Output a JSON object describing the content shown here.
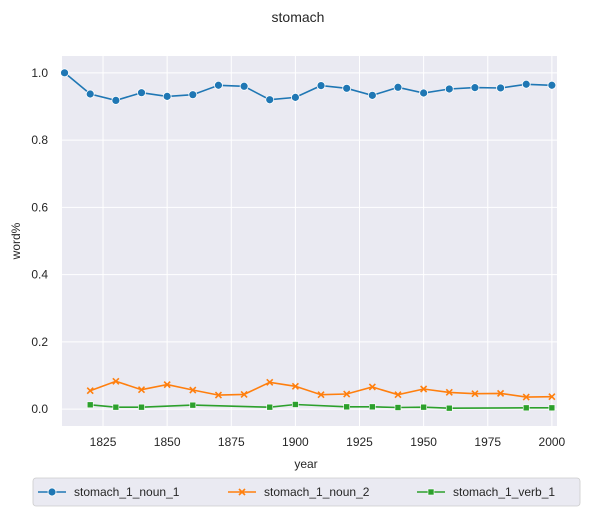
{
  "chart_data": {
    "type": "line",
    "title": "stomach",
    "xlabel": "year",
    "ylabel": "word%",
    "xlim": [
      1809,
      2002
    ],
    "ylim": [
      -0.05,
      1.05
    ],
    "x_ticks": [
      1825,
      1850,
      1875,
      1900,
      1925,
      1950,
      1975,
      2000
    ],
    "y_ticks": [
      0.0,
      0.2,
      0.4,
      0.6,
      0.8,
      1.0
    ],
    "grid": true,
    "legend_position": "bottom",
    "series": [
      {
        "name": "stomach_1_noun_1",
        "color": "#1f77b4",
        "marker": "circle",
        "x": [
          1810,
          1820,
          1830,
          1840,
          1850,
          1860,
          1870,
          1880,
          1890,
          1900,
          1910,
          1920,
          1930,
          1940,
          1950,
          1960,
          1970,
          1980,
          1990,
          2000
        ],
        "y": [
          1.0,
          0.937,
          0.918,
          0.941,
          0.93,
          0.935,
          0.963,
          0.96,
          0.92,
          0.927,
          0.962,
          0.954,
          0.933,
          0.957,
          0.94,
          0.952,
          0.956,
          0.955,
          0.966,
          0.963
        ]
      },
      {
        "name": "stomach_1_noun_2",
        "color": "#ff7f0e",
        "marker": "x",
        "x": [
          1820,
          1830,
          1840,
          1850,
          1860,
          1870,
          1880,
          1890,
          1900,
          1910,
          1920,
          1930,
          1940,
          1950,
          1960,
          1970,
          1980,
          1990,
          2000
        ],
        "y": [
          0.055,
          0.083,
          0.058,
          0.073,
          0.057,
          0.042,
          0.044,
          0.08,
          0.068,
          0.043,
          0.045,
          0.066,
          0.043,
          0.06,
          0.05,
          0.046,
          0.047,
          0.036,
          0.037
        ]
      },
      {
        "name": "stomach_1_verb_1",
        "color": "#2ca02c",
        "marker": "square",
        "x": [
          1820,
          1830,
          1840,
          1860,
          1890,
          1900,
          1920,
          1930,
          1940,
          1950,
          1960,
          1990,
          2000
        ],
        "y": [
          0.013,
          0.006,
          0.006,
          0.012,
          0.006,
          0.014,
          0.007,
          0.007,
          0.005,
          0.006,
          0.003,
          0.004,
          0.004
        ]
      }
    ]
  }
}
